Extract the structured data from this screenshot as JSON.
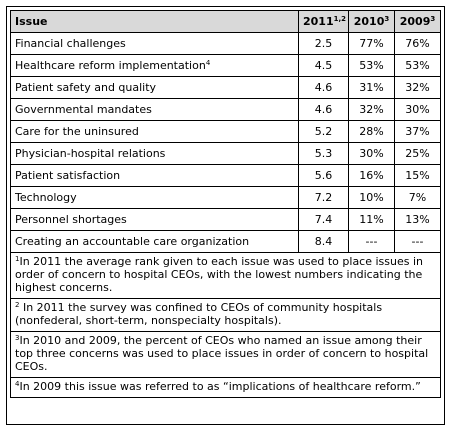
{
  "header": {
    "issue": "Issue",
    "y2011": "2011",
    "y2011_sup": "1,2",
    "y2010": "2010",
    "y2010_sup": "3",
    "y2009": "2009",
    "y2009_sup": "3"
  },
  "rows": [
    {
      "issue": "Financial challenges",
      "sup": "",
      "r2011": "2.5",
      "p2010": "77%",
      "p2009": "76%"
    },
    {
      "issue": "Healthcare reform implementation",
      "sup": "4",
      "r2011": "4.5",
      "p2010": "53%",
      "p2009": "53%"
    },
    {
      "issue": "Patient safety and quality",
      "sup": "",
      "r2011": "4.6",
      "p2010": "31%",
      "p2009": "32%"
    },
    {
      "issue": "Governmental mandates",
      "sup": "",
      "r2011": "4.6",
      "p2010": "32%",
      "p2009": "30%"
    },
    {
      "issue": "Care for the uninsured",
      "sup": "",
      "r2011": "5.2",
      "p2010": "28%",
      "p2009": "37%"
    },
    {
      "issue": "Physician-hospital relations",
      "sup": "",
      "r2011": "5.3",
      "p2010": "30%",
      "p2009": "25%"
    },
    {
      "issue": "Patient satisfaction",
      "sup": "",
      "r2011": "5.6",
      "p2010": "16%",
      "p2009": "15%"
    },
    {
      "issue": "Technology",
      "sup": "",
      "r2011": "7.2",
      "p2010": "10%",
      "p2009": "7%"
    },
    {
      "issue": "Personnel shortages",
      "sup": "",
      "r2011": "7.4",
      "p2010": "11%",
      "p2009": "13%"
    },
    {
      "issue": "Creating an accountable care organization",
      "sup": "",
      "r2011": "8.4",
      "p2010": "---",
      "p2009": "---"
    }
  ],
  "notes": [
    {
      "sup": "1",
      "text": "In 2011 the average rank given to each issue was used to place issues in order of concern to hospital CEOs, with the lowest numbers indicating the highest concerns."
    },
    {
      "sup": "2",
      "text": " In 2011 the survey was confined to CEOs of community hospitals (nonfederal, short-term, nonspecialty hospitals)."
    },
    {
      "sup": "3",
      "text": "In 2010 and 2009, the percent of CEOs who named an issue among their top three concerns was used to place issues in order of concern to hospital CEOs."
    },
    {
      "sup": "4",
      "text": "In 2009 this issue was referred to as “implications of healthcare reform.”"
    }
  ]
}
